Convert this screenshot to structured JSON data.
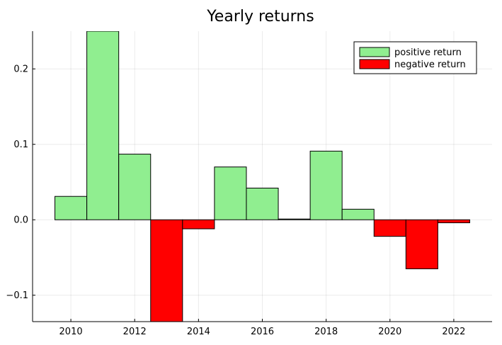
{
  "chart_data": {
    "type": "bar",
    "title": "Yearly returns",
    "xlabel": "",
    "ylabel": "",
    "years": [
      2010,
      2011,
      2012,
      2013,
      2014,
      2015,
      2016,
      2017,
      2018,
      2019,
      2020,
      2021,
      2022
    ],
    "values": [
      0.031,
      0.25,
      0.087,
      -0.135,
      -0.012,
      0.07,
      0.042,
      0.001,
      0.091,
      0.014,
      -0.022,
      -0.065,
      -0.004
    ],
    "xlim": [
      2008.8,
      2023.2
    ],
    "ylim": [
      -0.135,
      0.25
    ],
    "xticks": [
      "2010",
      "2012",
      "2014",
      "2016",
      "2018",
      "2020",
      "2022"
    ],
    "xtick_values": [
      2010,
      2012,
      2014,
      2016,
      2018,
      2020,
      2022
    ],
    "yticks": [
      "−0.1",
      "0.0",
      "0.1",
      "0.2"
    ],
    "ytick_values": [
      -0.1,
      0.0,
      0.1,
      0.2
    ],
    "grid": true,
    "legend_position": "top-right",
    "series": [
      {
        "name": "positive return",
        "color": "#90EE90"
      },
      {
        "name": "negative return",
        "color": "#FF0000"
      }
    ]
  }
}
